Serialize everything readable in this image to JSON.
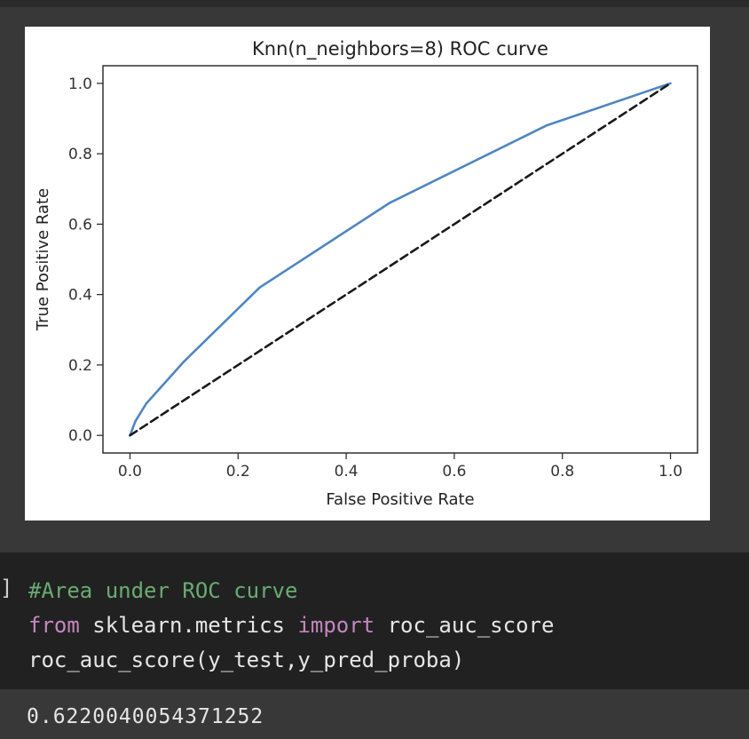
{
  "plot": {
    "chart_data": {
      "type": "line",
      "title": "Knn(n_neighbors=8) ROC curve",
      "xlabel": "False Positive Rate",
      "ylabel": "True Positive Rate",
      "xlim": [
        -0.05,
        1.05
      ],
      "ylim": [
        -0.05,
        1.05
      ],
      "xticks": [
        0.0,
        0.2,
        0.4,
        0.6,
        0.8,
        1.0
      ],
      "xtick_labels": [
        "0.0",
        "0.2",
        "0.4",
        "0.6",
        "0.8",
        "1.0"
      ],
      "yticks": [
        0.0,
        0.2,
        0.4,
        0.6,
        0.8,
        1.0
      ],
      "ytick_labels": [
        "0.0",
        "0.2",
        "0.4",
        "0.6",
        "0.8",
        "1.0"
      ],
      "grid": false,
      "series": [
        {
          "style": "solid",
          "color": "#4f86c1",
          "x": [
            0.0,
            0.005,
            0.01,
            0.03,
            0.1,
            0.24,
            0.48,
            0.77,
            1.0
          ],
          "y": [
            0.0,
            0.02,
            0.04,
            0.09,
            0.21,
            0.42,
            0.66,
            0.88,
            1.0
          ]
        },
        {
          "style": "dashed",
          "color": "#1a1a1a",
          "x": [
            0.0,
            1.0
          ],
          "y": [
            0.0,
            1.0
          ]
        }
      ]
    }
  },
  "code": {
    "bracket": "]",
    "comment": "#Area under ROC curve",
    "line2_kw1": "from",
    "line2_mod": " sklearn.metrics ",
    "line2_kw2": "import",
    "line2_name": " roc_auc_score",
    "line3": "roc_auc_score(y_test,y_pred_proba)"
  },
  "output": {
    "value": "0.6220040054371252"
  },
  "colors": {
    "page_bg": "#383838",
    "code_bg": "#212121",
    "comment": "#6aab73",
    "keyword": "#c586c0",
    "roc_line": "#4f86c1"
  }
}
